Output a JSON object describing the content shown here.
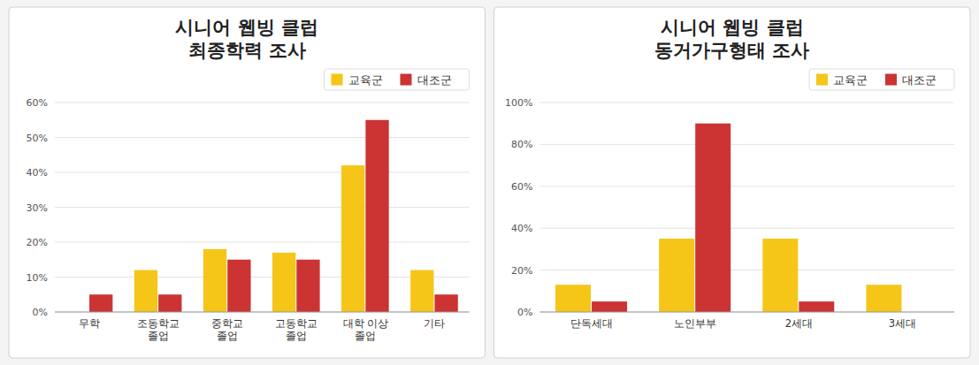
{
  "chart_data": [
    {
      "type": "bar",
      "title": "시니어 웹빙 클럽\n최종학력 조사",
      "categories": [
        "무학",
        "조동학교\n졸업",
        "중학교\n졸업",
        "고동학교\n졸업",
        "대학 이상\n졸업",
        "기타"
      ],
      "series": [
        {
          "name": "교육군",
          "color": "#F5C518",
          "values": [
            0,
            0.12,
            0.18,
            0.17,
            0.42,
            0.12
          ]
        },
        {
          "name": "대조군",
          "color": "#CC3333",
          "values": [
            0.05,
            0.05,
            0.15,
            0.15,
            0.55,
            0.05
          ]
        }
      ],
      "ylim": [
        0,
        0.6
      ],
      "yticks": [
        {
          "value": 0,
          "label": "0%"
        },
        {
          "value": 0.1,
          "label": "10%"
        },
        {
          "value": 0.2,
          "label": "20%"
        },
        {
          "value": 0.3,
          "label": "30%"
        },
        {
          "value": 0.4,
          "label": "40%"
        },
        {
          "value": 0.5,
          "label": "50%"
        },
        {
          "value": 0.6,
          "label": "60%"
        }
      ],
      "grid": true,
      "legend": "upper right"
    },
    {
      "type": "bar",
      "title": "시니어 웹빙 클럽\n동거가구형태 조사",
      "categories": [
        "단독세대",
        "노인부부",
        "2세대",
        "3세대"
      ],
      "series": [
        {
          "name": "교육군",
          "color": "#F5C518",
          "values": [
            0.13,
            0.35,
            0.35,
            0.13
          ]
        },
        {
          "name": "대조군",
          "color": "#CC3333",
          "values": [
            0.05,
            0.9,
            0.05,
            0
          ]
        }
      ],
      "ylim": [
        0,
        1.0
      ],
      "yticks": [
        {
          "value": 0,
          "label": "0%"
        },
        {
          "value": 0.2,
          "label": "20%"
        },
        {
          "value": 0.4,
          "label": "40%"
        },
        {
          "value": 0.6,
          "label": "60%"
        },
        {
          "value": 0.8,
          "label": "80%"
        },
        {
          "value": 1.0,
          "label": "100%"
        }
      ],
      "grid": true,
      "legend": "upper right"
    }
  ]
}
